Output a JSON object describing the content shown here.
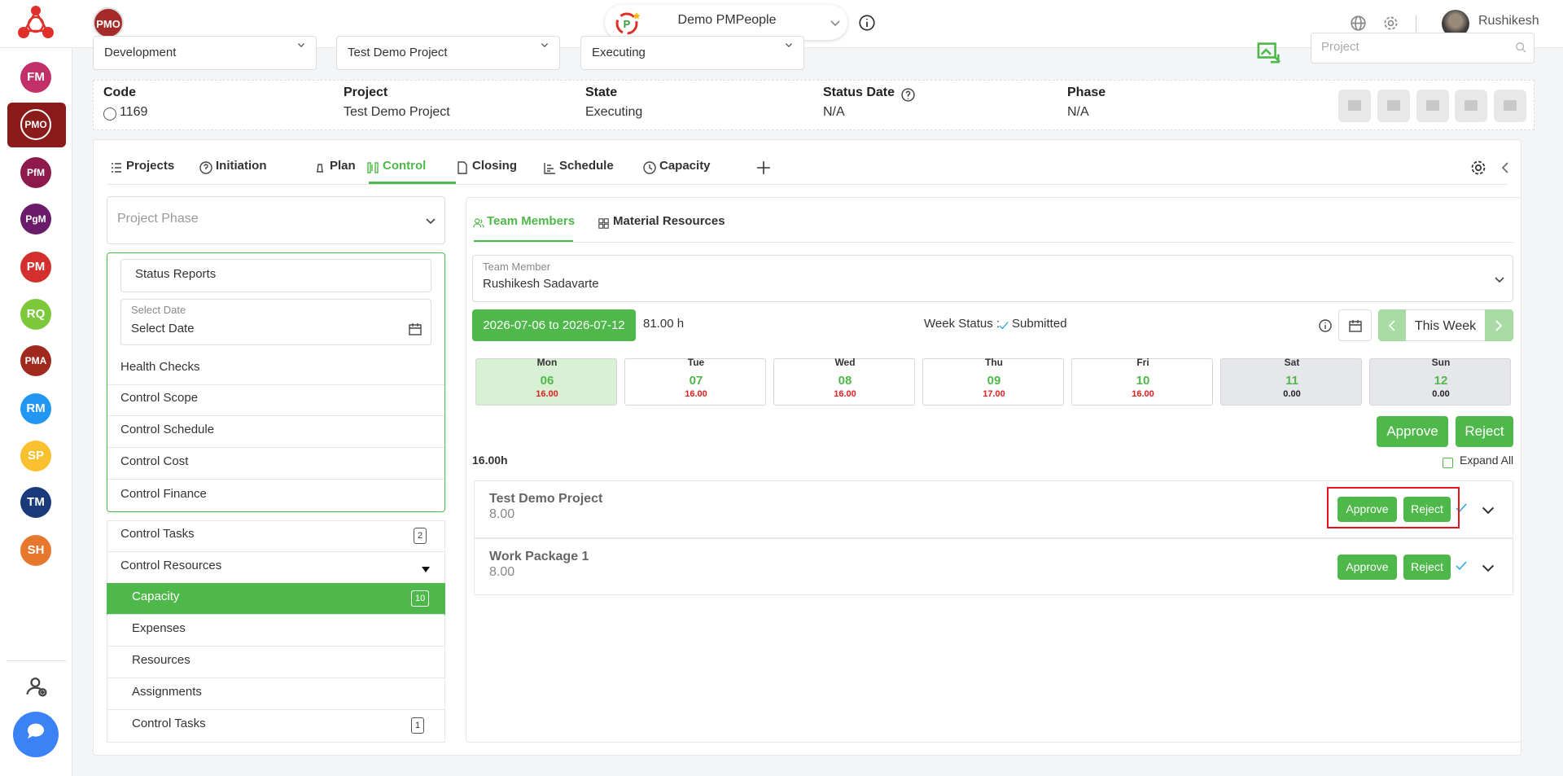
{
  "header": {
    "org_badge": "PMO",
    "workspace": "Demo PMPeople",
    "user": "Rushikesh"
  },
  "sidebar": {
    "apps": [
      "FM",
      "PMO",
      "PfM",
      "PgM",
      "PM",
      "RQ",
      "PMA",
      "RM",
      "SP",
      "TM",
      "SH"
    ]
  },
  "filters": [
    "Development",
    "Test Demo Project",
    "Executing"
  ],
  "search_placeholder": "Project",
  "project_info": [
    {
      "label": "Code",
      "value": "1169"
    },
    {
      "label": "Project",
      "value": "Test Demo Project"
    },
    {
      "label": "State",
      "value": "Executing"
    },
    {
      "label": "Status Date",
      "value": "N/A"
    },
    {
      "label": "Phase",
      "value": "N/A"
    }
  ],
  "tabs": [
    "Projects",
    "Initiation",
    "Plan",
    "Control",
    "Closing",
    "Schedule",
    "Capacity"
  ],
  "left_panel": {
    "phase_placeholder": "Project Phase",
    "status_reports": "Status Reports",
    "date_label": "Select Date",
    "date_placeholder": "Select Date",
    "phase_items": [
      "Health Checks",
      "Control Scope",
      "Control Schedule",
      "Control Cost",
      "Control Finance"
    ],
    "menu": [
      {
        "label": "Control Tasks",
        "badge": 2
      },
      {
        "label": "Control Resources"
      }
    ],
    "submenu": [
      {
        "label": "Capacity",
        "badge": 10
      },
      {
        "label": "Expenses"
      },
      {
        "label": "Resources"
      },
      {
        "label": "Assignments"
      },
      {
        "label": "Control Tasks",
        "badge": 1
      }
    ]
  },
  "capacity": {
    "tabs": [
      "Team Members",
      "Material Resources"
    ],
    "member_label": "Team Member",
    "member": "Rushikesh Sadavarte",
    "week_range": "2026-07-06 to 2026-07-12",
    "total": "81.00 h",
    "week_status_label": "Week Status :",
    "week_status": "Submitted",
    "week_button": "This Week",
    "days": [
      {
        "day": "Mon",
        "date": "06",
        "hours": "16.00"
      },
      {
        "day": "Tue",
        "date": "07",
        "hours": "16.00"
      },
      {
        "day": "Wed",
        "date": "08",
        "hours": "16.00"
      },
      {
        "day": "Thu",
        "date": "09",
        "hours": "17.00"
      },
      {
        "day": "Fri",
        "date": "10",
        "hours": "16.00"
      },
      {
        "day": "Sat",
        "date": "11",
        "hours": "0.00"
      },
      {
        "day": "Sun",
        "date": "12",
        "hours": "0.00"
      }
    ],
    "approve": "Approve",
    "reject": "Reject",
    "day_total": "16.00h",
    "expand_all": "Expand All",
    "rows": [
      {
        "title": "Test Demo Project",
        "hours": "8.00"
      },
      {
        "title": "Work Package 1",
        "hours": "8.00"
      }
    ]
  }
}
